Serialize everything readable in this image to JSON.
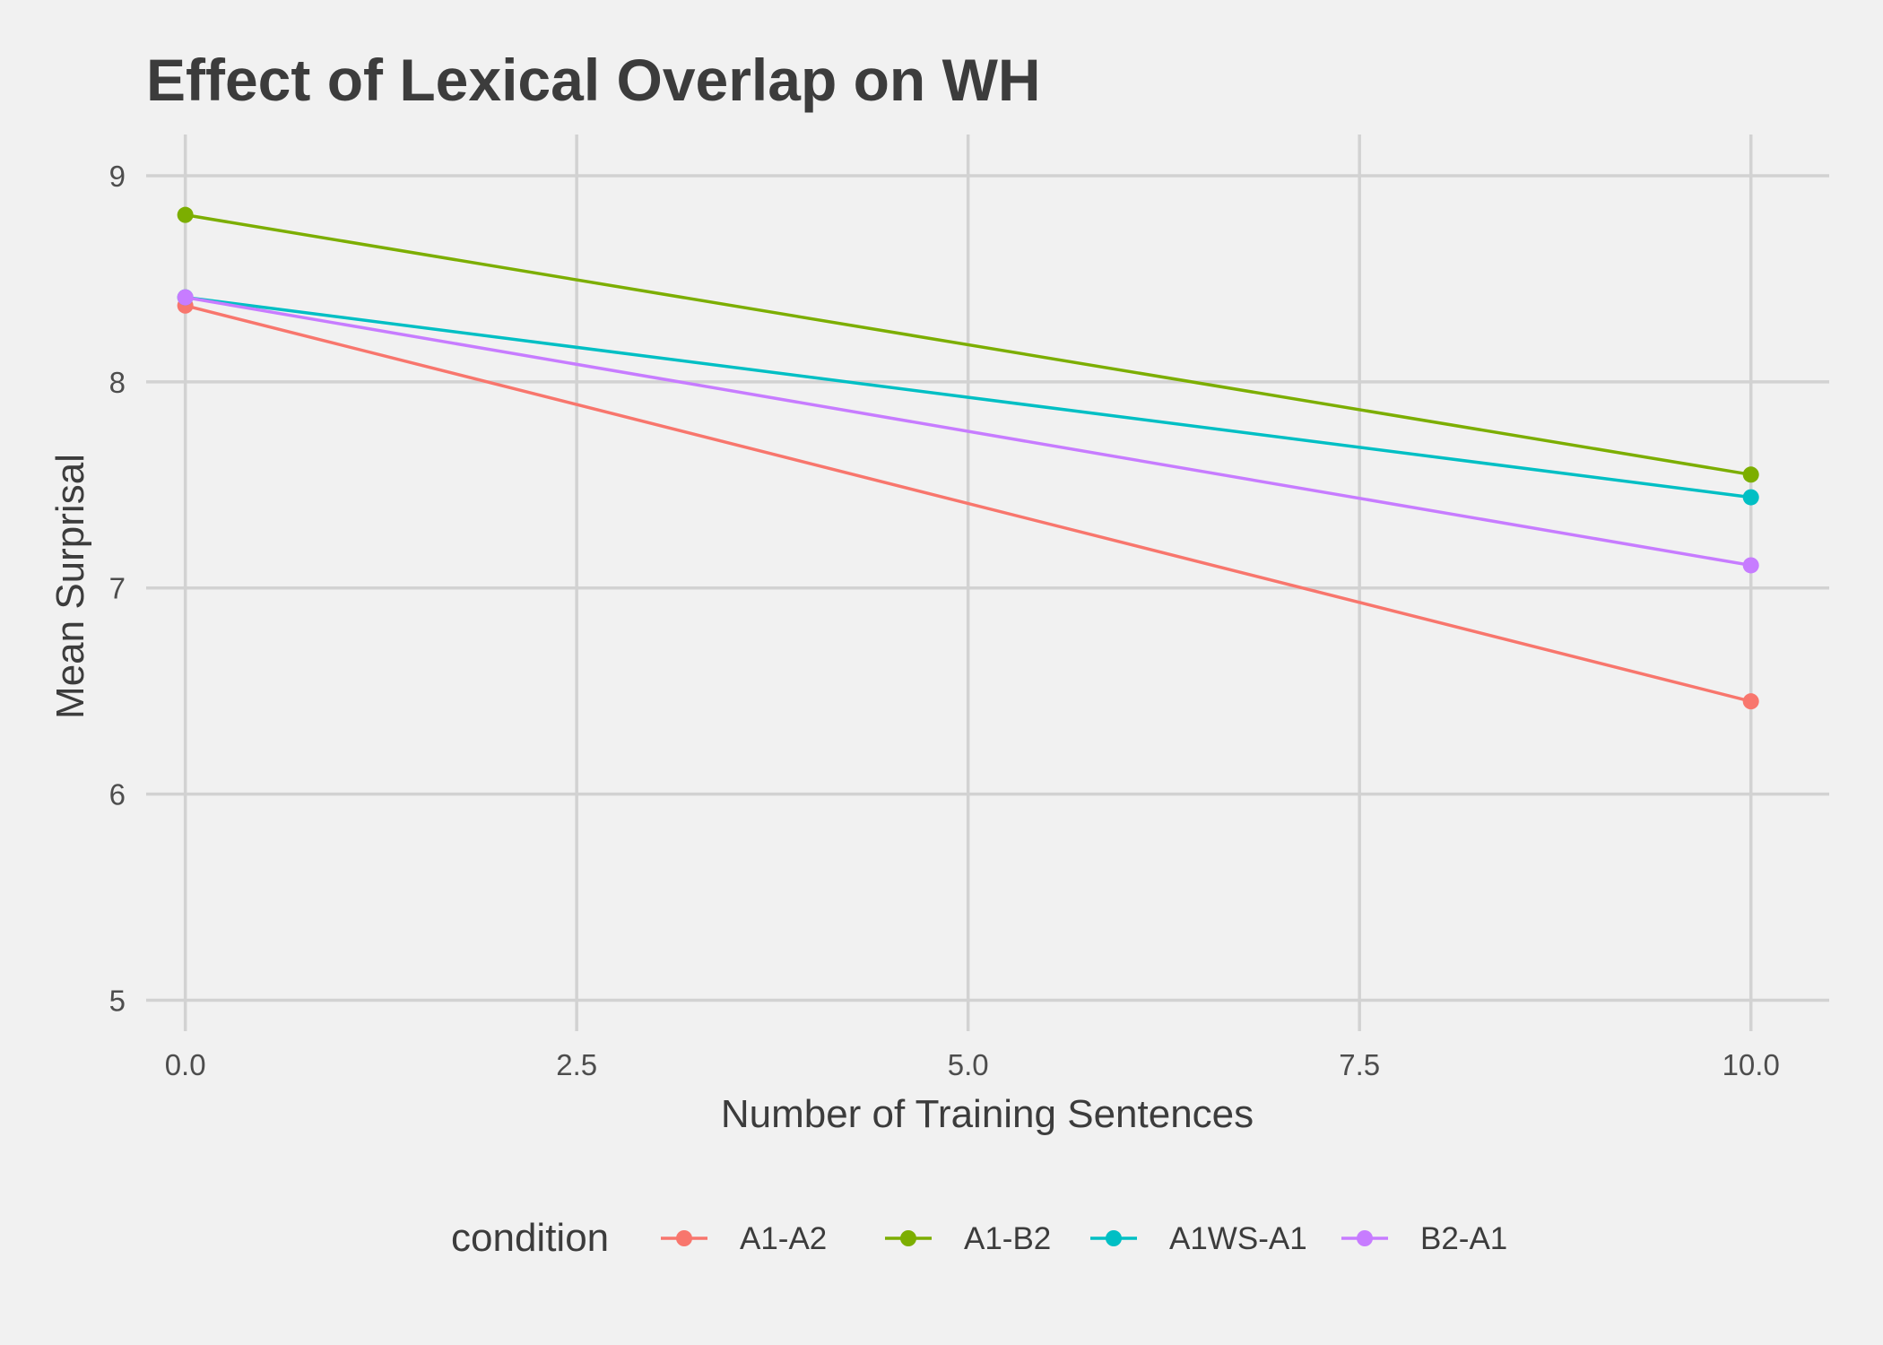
{
  "chart_data": {
    "type": "line",
    "title": "Effect of Lexical Overlap on WH",
    "xlabel": "Number of Training Sentences",
    "ylabel": "Mean Surprisal",
    "xlim": [
      -0.25,
      10.5
    ],
    "ylim": [
      4.85,
      9.2
    ],
    "x_ticks": [
      0,
      2.5,
      5,
      7.5,
      10
    ],
    "x_tick_labels": [
      "0.0",
      "2.5",
      "5.0",
      "7.5",
      "10.0"
    ],
    "y_ticks": [
      5,
      6,
      7,
      8,
      9
    ],
    "y_tick_labels": [
      "5",
      "6",
      "7",
      "8",
      "9"
    ],
    "grid": true,
    "legend": {
      "title": "condition",
      "position": "bottom"
    },
    "x": [
      0,
      10
    ],
    "series": [
      {
        "name": "A1-A2",
        "color": "#f8766d",
        "values": [
          8.37,
          6.45
        ]
      },
      {
        "name": "A1-B2",
        "color": "#7cae00",
        "values": [
          8.81,
          7.55
        ]
      },
      {
        "name": "A1WS-A1",
        "color": "#00bfc4",
        "values": [
          8.41,
          7.44
        ]
      },
      {
        "name": "B2-A1",
        "color": "#c77cff",
        "values": [
          8.41,
          7.11
        ]
      }
    ]
  }
}
